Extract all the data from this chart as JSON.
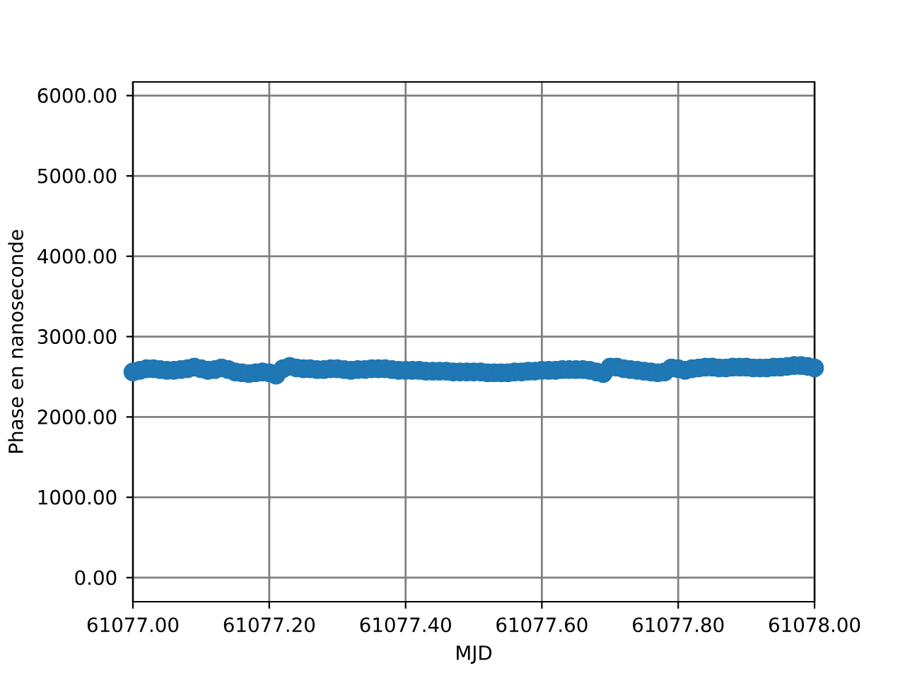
{
  "chart_data": {
    "type": "scatter",
    "xlabel": "MJD",
    "ylabel": "Phase en nanoseconde",
    "x": [
      61077.0,
      61077.01,
      61077.02,
      61077.03,
      61077.04,
      61077.05,
      61077.06,
      61077.07,
      61077.08,
      61077.09,
      61077.1,
      61077.11,
      61077.12,
      61077.13,
      61077.14,
      61077.15,
      61077.16,
      61077.17,
      61077.18,
      61077.19,
      61077.2,
      61077.21,
      61077.22,
      61077.23,
      61077.24,
      61077.25,
      61077.26,
      61077.27,
      61077.28,
      61077.29,
      61077.3,
      61077.31,
      61077.32,
      61077.33,
      61077.34,
      61077.35,
      61077.36,
      61077.37,
      61077.38,
      61077.39,
      61077.4,
      61077.41,
      61077.42,
      61077.43,
      61077.44,
      61077.45,
      61077.46,
      61077.47,
      61077.48,
      61077.49,
      61077.5,
      61077.51,
      61077.52,
      61077.53,
      61077.54,
      61077.55,
      61077.56,
      61077.57,
      61077.58,
      61077.59,
      61077.6,
      61077.61,
      61077.62,
      61077.63,
      61077.64,
      61077.65,
      61077.66,
      61077.67,
      61077.68,
      61077.69,
      61077.7,
      61077.71,
      61077.72,
      61077.73,
      61077.74,
      61077.75,
      61077.76,
      61077.77,
      61077.78,
      61077.79,
      61077.8,
      61077.81,
      61077.82,
      61077.83,
      61077.84,
      61077.85,
      61077.86,
      61077.87,
      61077.88,
      61077.89,
      61077.9,
      61077.91,
      61077.92,
      61077.93,
      61077.94,
      61077.95,
      61077.96,
      61077.97,
      61077.98,
      61077.99,
      61078.0
    ],
    "values": [
      2560,
      2580,
      2600,
      2600,
      2590,
      2580,
      2580,
      2590,
      2600,
      2620,
      2600,
      2580,
      2590,
      2610,
      2590,
      2560,
      2550,
      2540,
      2550,
      2560,
      2550,
      2520,
      2600,
      2630,
      2610,
      2600,
      2600,
      2590,
      2590,
      2600,
      2600,
      2590,
      2580,
      2590,
      2590,
      2600,
      2600,
      2600,
      2590,
      2580,
      2580,
      2580,
      2580,
      2570,
      2570,
      2570,
      2570,
      2560,
      2560,
      2560,
      2560,
      2560,
      2550,
      2550,
      2550,
      2550,
      2560,
      2560,
      2570,
      2570,
      2580,
      2580,
      2580,
      2590,
      2590,
      2590,
      2590,
      2580,
      2560,
      2540,
      2620,
      2620,
      2600,
      2590,
      2580,
      2570,
      2560,
      2550,
      2560,
      2610,
      2600,
      2580,
      2600,
      2610,
      2620,
      2620,
      2610,
      2610,
      2620,
      2620,
      2620,
      2610,
      2610,
      2610,
      2620,
      2620,
      2630,
      2640,
      2640,
      2630,
      2610
    ],
    "color": "#1f77b4",
    "marker": "circle",
    "grid": true,
    "xlim": [
      61077.0,
      61078.0
    ],
    "ylim": [
      -300,
      6170
    ],
    "xticks": [
      {
        "value": 61077.0,
        "label": "61077.00"
      },
      {
        "value": 61077.2,
        "label": "61077.20"
      },
      {
        "value": 61077.4,
        "label": "61077.40"
      },
      {
        "value": 61077.6,
        "label": "61077.60"
      },
      {
        "value": 61077.8,
        "label": "61077.80"
      },
      {
        "value": 61078.0,
        "label": "61078.00"
      }
    ],
    "yticks": [
      {
        "value": 0,
        "label": "0.00"
      },
      {
        "value": 1000,
        "label": "1000.00"
      },
      {
        "value": 2000,
        "label": "2000.00"
      },
      {
        "value": 3000,
        "label": "3000.00"
      },
      {
        "value": 4000,
        "label": "4000.00"
      },
      {
        "value": 5000,
        "label": "5000.00"
      },
      {
        "value": 6000,
        "label": "6000.00"
      }
    ]
  }
}
